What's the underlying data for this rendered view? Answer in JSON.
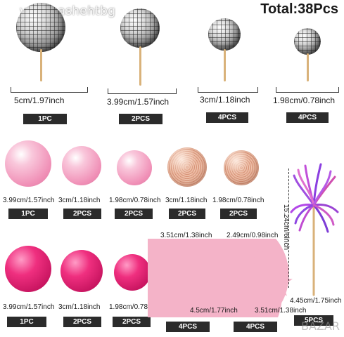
{
  "title": "Total:38Pcs",
  "watermark": "vendnashehtbg",
  "watermark_corner": "BAZAR",
  "disco_row": [
    {
      "size": "5cm/1.97inch",
      "qty": "1PC"
    },
    {
      "size": "3.99cm/1.57inch",
      "qty": "2PCS"
    },
    {
      "size": "3cm/1.18inch",
      "qty": "4PCS"
    },
    {
      "size": "1.98cm/0.78inch",
      "qty": "4PCS"
    }
  ],
  "light_pink_row": [
    {
      "size": "3.99cm/1.57inch",
      "qty": "1PC"
    },
    {
      "size": "3cm/1.18inch",
      "qty": "2PCS"
    },
    {
      "size": "1.98cm/0.78inch",
      "qty": "2PCS"
    }
  ],
  "glitter_row": [
    {
      "size": "3cm/1.18inch",
      "qty": "2PCS"
    },
    {
      "size": "1.98cm/0.78inch",
      "qty": "2PCS"
    }
  ],
  "hot_pink_row": [
    {
      "size": "3.99cm/1.57inch",
      "qty": "1PC"
    },
    {
      "size": "3cm/1.18inch",
      "qty": "2PCS"
    },
    {
      "size": "1.98cm/0.78inch",
      "qty": "2PCS"
    }
  ],
  "star_outline": {
    "size_top": "3.51cm/1.38inch",
    "size_bottom": "4.5cm/1.77inch",
    "qty": "4PCS"
  },
  "star_solid": {
    "size_top": "2.49cm/0.98inch",
    "size_bottom": "3.51cm/1.38inch",
    "qty": "4PCS"
  },
  "tinsel_pick": {
    "height": "15.24cm/6inch",
    "width": "4.45cm/1.75inch",
    "qty": "5PCS"
  },
  "colors": {
    "light_pink": "#f08fb6",
    "hot_pink": "#e01f73",
    "glitter": "#e3a88e",
    "star_pink": "#f4b3c8",
    "label_bg": "#2b2b2b"
  }
}
